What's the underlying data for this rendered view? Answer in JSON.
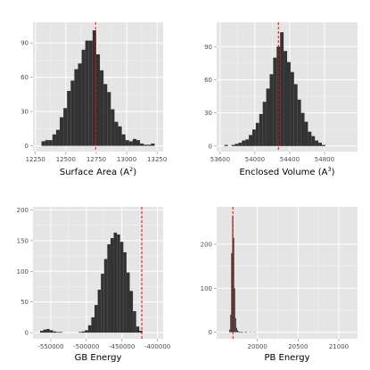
{
  "colors": {
    "panel_bg": "#e5e5e5",
    "grid_major": "#ffffff",
    "grid_minor": "#f2f2f2",
    "bar_fill": "#333333",
    "ref_line": "#ff0000",
    "tick_text": "#4d4d4d"
  },
  "chart_data": [
    {
      "type": "bar",
      "xlabel": "Surface Area (A2)",
      "xlabel_base": "Surface Area (A",
      "xlabel_sup": "2",
      "xlabel_close": ")",
      "xlim": [
        12230,
        13300
      ],
      "ylim": [
        -5,
        108
      ],
      "xticks": [
        12250,
        12500,
        12750,
        13000,
        13250
      ],
      "xtick_labels": [
        "12250",
        "12500",
        "12750",
        "13000",
        "13250"
      ],
      "yticks": [
        0,
        30,
        60,
        90
      ],
      "ytick_labels": [
        "0",
        "30",
        "60",
        "90"
      ],
      "vline": 12745,
      "bin_start": 12300,
      "bin_width": 30,
      "counts": [
        4,
        5,
        5,
        10,
        14,
        25,
        33,
        48,
        57,
        67,
        72,
        84,
        92,
        92,
        101,
        80,
        66,
        54,
        47,
        32,
        21,
        17,
        10,
        5,
        4,
        6,
        5,
        2,
        1,
        1,
        2
      ]
    },
    {
      "type": "bar",
      "xlabel": "Enclosed Volume (A3)",
      "xlabel_base": "Enclosed Volume (A",
      "xlabel_sup": "3",
      "xlabel_close": ")",
      "xlim": [
        53560,
        55180
      ],
      "ylim": [
        -5,
        112
      ],
      "xticks": [
        53600,
        54000,
        54400,
        54800
      ],
      "xtick_labels": [
        "53600",
        "54000",
        "54400",
        "54800"
      ],
      "yticks": [
        0,
        30,
        60,
        90
      ],
      "ytick_labels": [
        "0",
        "30",
        "60",
        "90"
      ],
      "vline": 54270,
      "bin_start": 53650,
      "bin_width": 40,
      "counts": [
        1,
        0,
        1,
        2,
        3,
        5,
        6,
        10,
        15,
        21,
        29,
        40,
        52,
        65,
        80,
        90,
        103,
        86,
        76,
        67,
        56,
        42,
        30,
        22,
        13,
        9,
        5,
        3,
        1
      ]
    },
    {
      "type": "bar",
      "xlabel": "GB Energy",
      "xlim": [
        -575000,
        -392000
      ],
      "ylim": [
        -10,
        205
      ],
      "xticks": [
        -550000,
        -500000,
        -450000,
        -400000
      ],
      "xtick_labels": [
        "-550000",
        "-500000",
        "-450000",
        "-400000"
      ],
      "yticks": [
        0,
        50,
        100,
        150,
        200
      ],
      "ytick_labels": [
        "0",
        "50",
        "100",
        "150",
        "200"
      ],
      "vline": -422000,
      "bin_start": -565000,
      "bin_width": 4500,
      "counts": [
        3,
        5,
        6,
        4,
        2,
        1,
        1,
        0,
        0,
        0,
        0,
        0,
        1,
        2,
        4,
        12,
        25,
        45,
        70,
        96,
        120,
        144,
        154,
        163,
        160,
        148,
        131,
        98,
        68,
        35,
        10,
        3
      ]
    },
    {
      "type": "bar",
      "xlabel": "PB Energy",
      "xlim": [
        19500,
        21230
      ],
      "ylim": [
        -15,
        285
      ],
      "xticks": [
        20000,
        20500,
        21000
      ],
      "xtick_labels": [
        "20000",
        "20500",
        "21000"
      ],
      "yticks": [
        0,
        100,
        200
      ],
      "ytick_labels": [
        "0",
        "100",
        "200"
      ],
      "vline": 19700,
      "bin_start": 19655,
      "bin_width": 12,
      "counts": [
        6,
        40,
        180,
        265,
        215,
        100,
        32,
        10,
        4,
        2,
        1,
        1,
        1,
        1,
        0,
        0,
        1,
        1,
        0,
        0,
        0,
        1,
        0,
        0,
        0,
        1
      ]
    }
  ]
}
